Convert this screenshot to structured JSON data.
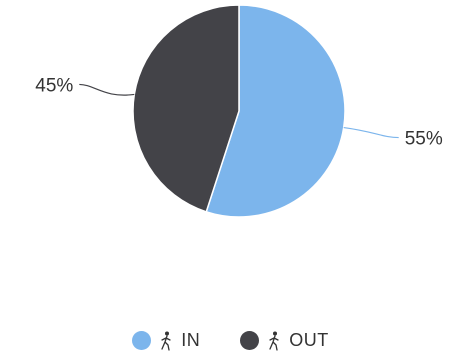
{
  "chart_data": {
    "type": "pie",
    "title": "",
    "slices": [
      {
        "name": "IN",
        "value": 55,
        "label": "55%",
        "color": "#7cb5ec"
      },
      {
        "name": "OUT",
        "value": 45,
        "label": "45%",
        "color": "#434348"
      }
    ],
    "legend_position": "bottom-center"
  },
  "legend": {
    "items": [
      {
        "label": "IN",
        "color": "#7cb5ec",
        "icon": "walker-icon"
      },
      {
        "label": "OUT",
        "color": "#434348",
        "icon": "walker-icon"
      }
    ]
  }
}
